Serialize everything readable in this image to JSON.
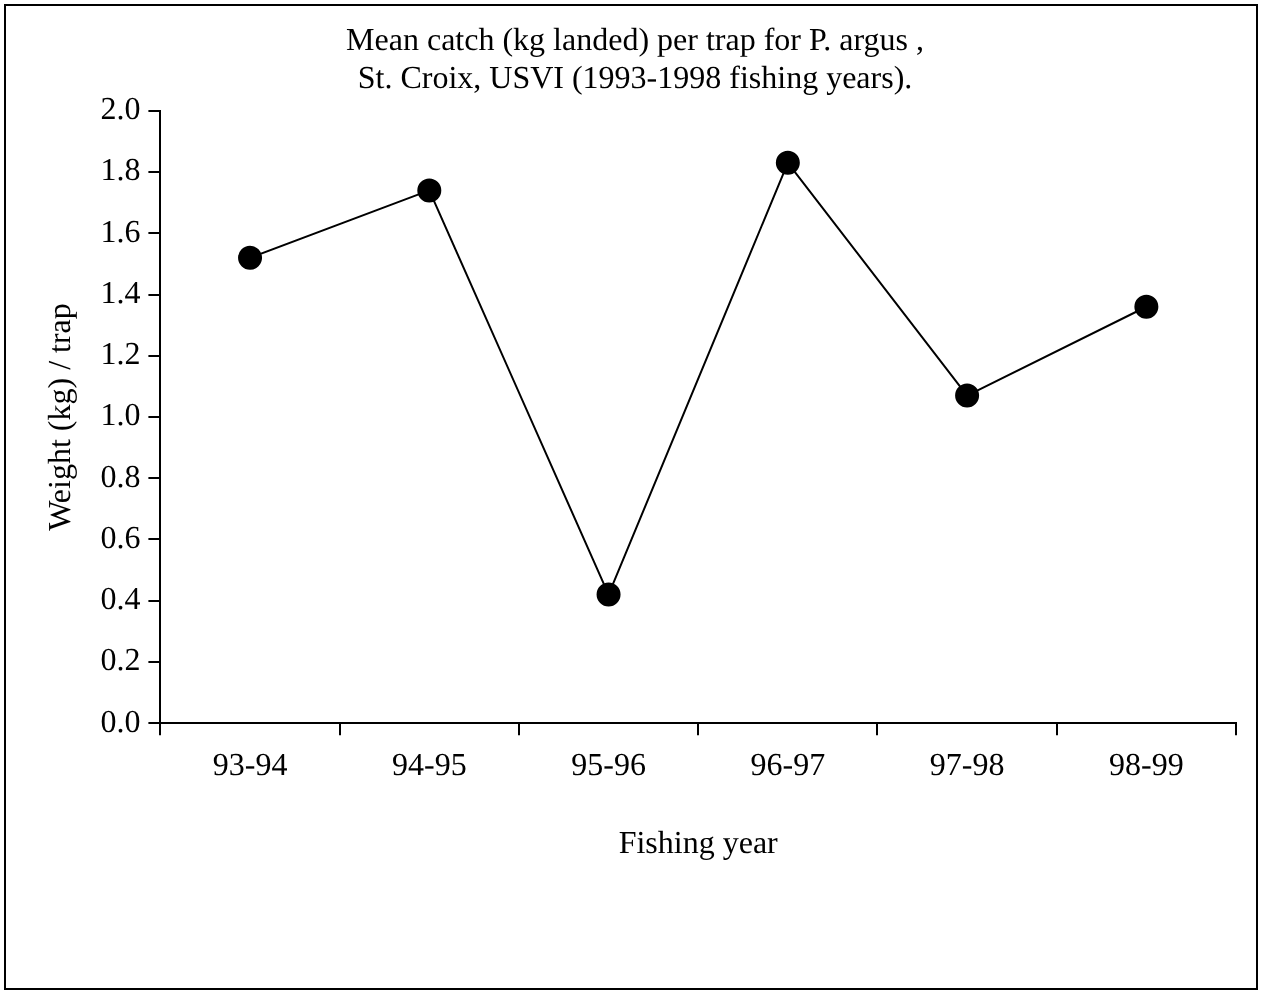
{
  "chart_data": {
    "type": "line",
    "title": "Mean catch (kg landed) per trap for P. argus ,\nSt. Croix, USVI (1993-1998 fishing years).",
    "xlabel": "Fishing year",
    "ylabel": "Weight (kg) / trap",
    "categories": [
      "93-94",
      "94-95",
      "95-96",
      "96-97",
      "97-98",
      "98-99"
    ],
    "series": [
      {
        "color": "#000000",
        "values": [
          1.52,
          1.74,
          0.42,
          1.83,
          1.07,
          1.36
        ]
      }
    ],
    "ylim": [
      0,
      2
    ],
    "yticks": [
      {
        "value": 0,
        "label": "0.0"
      },
      {
        "value": 0.2,
        "label": "0.2"
      },
      {
        "value": 0.4,
        "label": "0.4"
      },
      {
        "value": 0.6,
        "label": "0.6"
      },
      {
        "value": 0.8,
        "label": "0.8"
      },
      {
        "value": 1,
        "label": "1.0"
      },
      {
        "value": 1.2,
        "label": "1.2"
      },
      {
        "value": 1.4,
        "label": "1.4"
      },
      {
        "value": 1.6,
        "label": "1.6"
      },
      {
        "value": 1.8,
        "label": "1.8"
      },
      {
        "value": 2,
        "label": "2.0"
      }
    ],
    "grid": false,
    "legend": false,
    "marker": "circle",
    "line_style": "solid"
  }
}
